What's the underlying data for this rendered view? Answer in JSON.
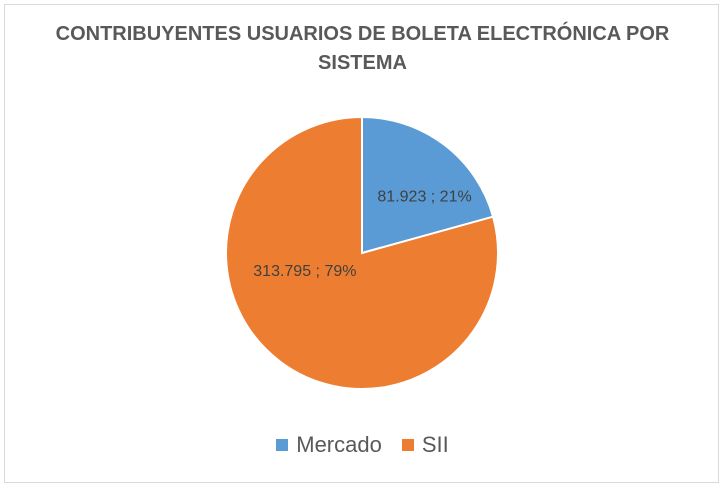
{
  "chart_data": {
    "type": "pie",
    "title": "CONTRIBUYENTES USUARIOS DE BOLETA ELECTRÓNICA POR SISTEMA",
    "legend_position": "bottom",
    "slices": [
      {
        "name": "Mercado",
        "value": 81923,
        "percent": 21,
        "label": "81.923 ; 21%",
        "color": "#5b9bd5"
      },
      {
        "name": "SII",
        "value": 313795,
        "percent": 79,
        "label": "313.795 ; 79%",
        "color": "#ed7d31"
      }
    ]
  }
}
